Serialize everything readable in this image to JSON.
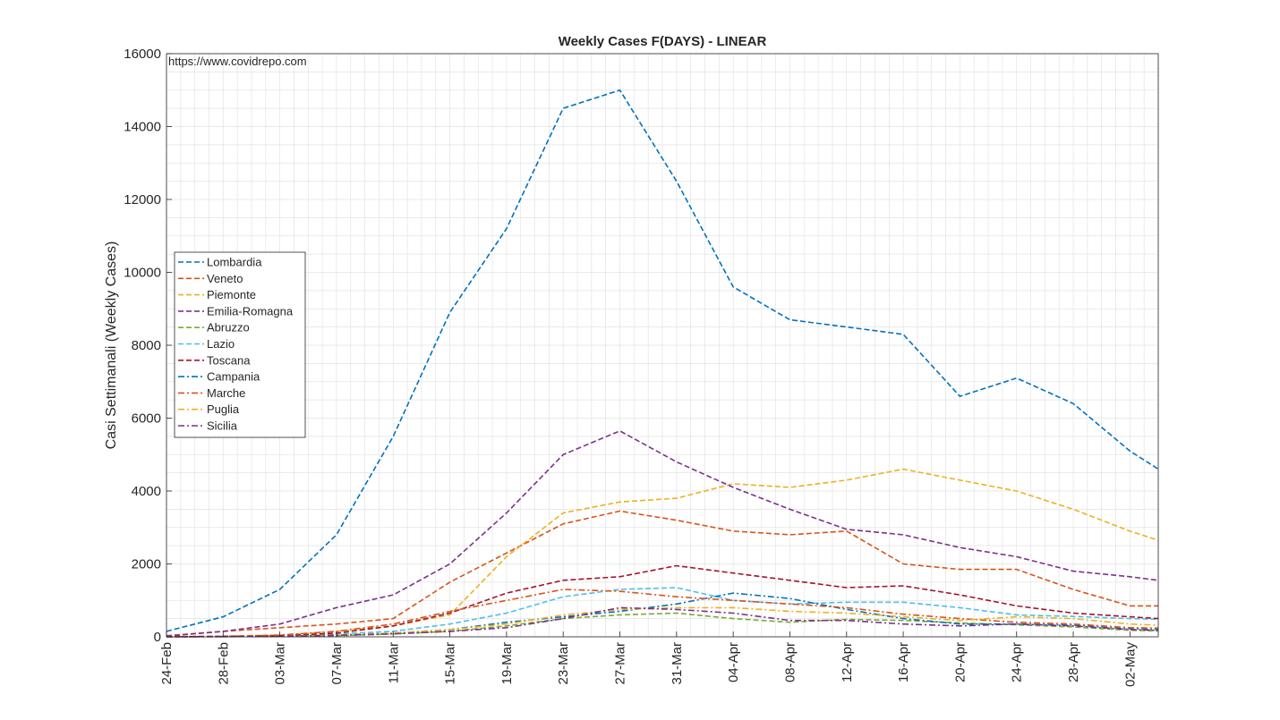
{
  "chart_data": {
    "type": "line",
    "title": "Weekly Cases F(DAYS) - LINEAR",
    "xlabel": "",
    "ylabel": "Casi Settimanali (Weekly Cases)",
    "source_text": "https://www.covidrepo.com",
    "ylim": [
      0,
      16000
    ],
    "yticks": [
      0,
      2000,
      4000,
      6000,
      8000,
      10000,
      12000,
      14000,
      16000
    ],
    "ytick_labels": [
      "0",
      "2000",
      "4000",
      "6000",
      "8000",
      "10000",
      "12000",
      "14000",
      "16000"
    ],
    "xtick_labels": [
      "24-Feb",
      "28-Feb",
      "03-Mar",
      "07-Mar",
      "11-Mar",
      "15-Mar",
      "19-Mar",
      "23-Mar",
      "27-Mar",
      "31-Mar",
      "04-Apr",
      "08-Apr",
      "12-Apr",
      "16-Apr",
      "20-Apr",
      "24-Apr",
      "28-Apr",
      "02-May"
    ],
    "x_start": "24-Feb",
    "x_end": "04-May",
    "grid": true,
    "legend_position": "left-middle",
    "x": [
      "24-Feb",
      "28-Feb",
      "03-Mar",
      "07-Mar",
      "11-Mar",
      "15-Mar",
      "19-Mar",
      "23-Mar",
      "27-Mar",
      "31-Mar",
      "04-Apr",
      "08-Apr",
      "12-Apr",
      "16-Apr",
      "20-Apr",
      "24-Apr",
      "28-Apr",
      "02-May",
      "04-May"
    ],
    "series": [
      {
        "name": "Lombardia",
        "color": "#0072BD",
        "style": "dashed",
        "values": [
          150,
          550,
          1300,
          2800,
          5500,
          8900,
          11200,
          14500,
          15000,
          12500,
          9600,
          8700,
          8500,
          8300,
          6600,
          7100,
          6400,
          5100,
          4600
        ]
      },
      {
        "name": "Veneto",
        "color": "#D95319",
        "style": "dashed",
        "values": [
          30,
          150,
          250,
          350,
          500,
          1500,
          2300,
          3100,
          3450,
          3200,
          2900,
          2800,
          2900,
          2000,
          1850,
          1850,
          1300,
          850,
          850
        ]
      },
      {
        "name": "Piemonte",
        "color": "#EDB120",
        "style": "dashed",
        "values": [
          5,
          20,
          50,
          150,
          300,
          600,
          2200,
          3400,
          3700,
          3800,
          4200,
          4100,
          4300,
          4600,
          4300,
          4000,
          3500,
          2900,
          2650
        ]
      },
      {
        "name": "Emilia-Romagna",
        "color": "#7E2F8E",
        "style": "dashed",
        "values": [
          20,
          150,
          350,
          800,
          1150,
          2000,
          3400,
          5000,
          5650,
          4800,
          4100,
          3500,
          2950,
          2800,
          2450,
          2200,
          1800,
          1650,
          1550
        ]
      },
      {
        "name": "Abruzzo",
        "color": "#77AC30",
        "style": "dashed",
        "values": [
          0,
          5,
          10,
          30,
          80,
          150,
          300,
          500,
          600,
          650,
          500,
          400,
          480,
          450,
          380,
          330,
          270,
          180,
          160
        ]
      },
      {
        "name": "Lazio",
        "color": "#4DBEEE",
        "style": "dashed",
        "values": [
          3,
          10,
          30,
          80,
          150,
          350,
          650,
          1100,
          1300,
          1350,
          1000,
          900,
          950,
          950,
          800,
          600,
          560,
          500,
          480
        ]
      },
      {
        "name": "Toscana",
        "color": "#A2142F",
        "style": "dashed",
        "values": [
          2,
          10,
          30,
          100,
          300,
          650,
          1200,
          1550,
          1650,
          1950,
          1750,
          1550,
          1350,
          1400,
          1150,
          850,
          650,
          550,
          500
        ]
      },
      {
        "name": "Campania",
        "color": "#0072BD",
        "style": "dashdot",
        "values": [
          2,
          8,
          20,
          50,
          100,
          200,
          400,
          550,
          700,
          900,
          1200,
          1050,
          750,
          500,
          350,
          350,
          320,
          220,
          200
        ]
      },
      {
        "name": "Marche",
        "color": "#D95319",
        "style": "dashdot",
        "values": [
          2,
          10,
          50,
          150,
          350,
          700,
          1000,
          1300,
          1250,
          1100,
          1000,
          900,
          800,
          620,
          500,
          400,
          350,
          250,
          240
        ]
      },
      {
        "name": "Puglia",
        "color": "#EDB120",
        "style": "dashdot",
        "values": [
          2,
          5,
          15,
          50,
          100,
          200,
          350,
          600,
          750,
          800,
          800,
          700,
          650,
          550,
          450,
          550,
          500,
          350,
          320
        ]
      },
      {
        "name": "Sicilia",
        "color": "#7E2F8E",
        "style": "dashdot",
        "values": [
          2,
          5,
          15,
          40,
          80,
          150,
          250,
          500,
          800,
          750,
          650,
          450,
          450,
          350,
          300,
          350,
          300,
          200,
          180
        ]
      }
    ]
  }
}
